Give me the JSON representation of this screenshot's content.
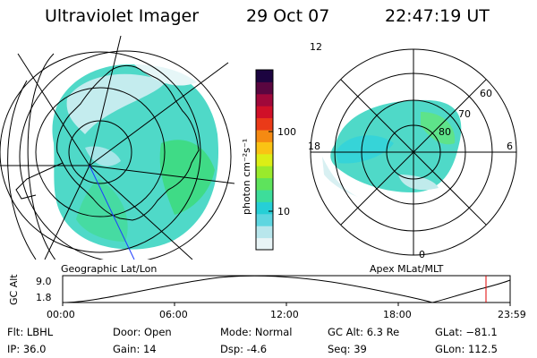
{
  "header": {
    "instrument": "Ultraviolet Imager",
    "date": "29 Oct 07",
    "time": "22:47:19 UT"
  },
  "geo_panel": {
    "label": "Geographic Lat/Lon"
  },
  "polar_panel": {
    "label": "Apex MLat/MLT",
    "mlt_labels": [
      "12",
      "18",
      "6",
      "0"
    ],
    "mlat_labels": [
      "60",
      "70",
      "80"
    ]
  },
  "colorbar": {
    "unit": "photon cm⁻²s⁻¹",
    "tick_labels": [
      "100",
      "10"
    ],
    "colors": [
      "#e8f4f6",
      "#b8e6ec",
      "#5ed6e0",
      "#26cfd6",
      "#3ddd9a",
      "#5ee35c",
      "#9aea2c",
      "#dcee16",
      "#fac314",
      "#f58a12",
      "#ea3a18",
      "#d01028",
      "#a0083a",
      "#5a0640",
      "#1c0440"
    ]
  },
  "altitude_plot": {
    "ylabel": "GC Alt",
    "y_ticks": [
      "9.0",
      "1.8"
    ],
    "x_ticks": [
      "00:00",
      "06:00",
      "12:00",
      "18:00",
      "23:59"
    ],
    "current_marker_color": "#e00000"
  },
  "info": {
    "flt": "Flt: LBHL",
    "ip": "IP: 36.0",
    "door": "Door: Open",
    "gain": "Gain: 14",
    "mode": "Mode: Normal",
    "dsp": "Dsp:    -4.6",
    "gc_alt": "GC Alt: 6.3 Re",
    "seq": "Seq: 39",
    "glat": "GLat: −81.1",
    "glon": "GLon: 112.5"
  }
}
